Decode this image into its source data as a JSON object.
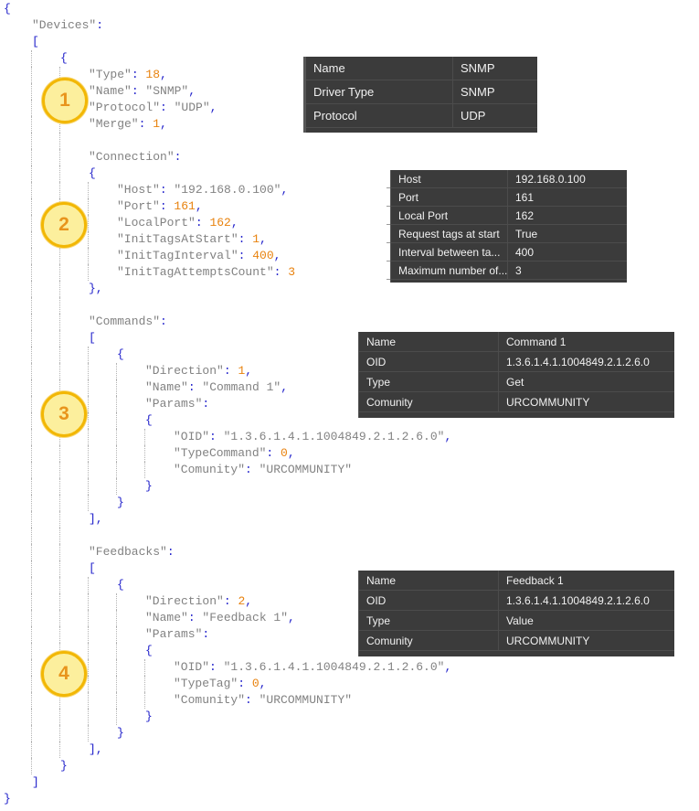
{
  "colors": {
    "punctuation": "#2323cb",
    "string": "#828282",
    "number": "#e8820e",
    "indent_guide": "#b3b3b3",
    "circle_fill": "#fcef9d",
    "circle_border": "#f2b705",
    "circle_number": "#e8941c",
    "table_background": "#3b3b3b",
    "table_text": "#f1f1f1",
    "table_separator": "#4c4c4c"
  },
  "annotations": [
    {
      "label": "1"
    },
    {
      "label": "2"
    },
    {
      "label": "3"
    },
    {
      "label": "4"
    }
  ],
  "code": {
    "lines": [
      {
        "d": 0,
        "t": [
          [
            "p",
            "{"
          ]
        ]
      },
      {
        "d": 1,
        "t": [
          [
            "s",
            "\"Devices\""
          ],
          [
            "p",
            ":"
          ]
        ]
      },
      {
        "d": 1,
        "t": [
          [
            "p",
            "["
          ]
        ]
      },
      {
        "d": 2,
        "t": [
          [
            "p",
            "{"
          ]
        ]
      },
      {
        "d": 3,
        "t": [
          [
            "s",
            "\"Type\""
          ],
          [
            "p",
            ": "
          ],
          [
            "n",
            "18"
          ],
          [
            "p",
            ","
          ]
        ]
      },
      {
        "d": 3,
        "t": [
          [
            "s",
            "\"Name\""
          ],
          [
            "p",
            ": "
          ],
          [
            "s",
            "\"SNMP\""
          ],
          [
            "p",
            ","
          ]
        ]
      },
      {
        "d": 3,
        "t": [
          [
            "s",
            "\"Protocol\""
          ],
          [
            "p",
            ": "
          ],
          [
            "s",
            "\"UDP\""
          ],
          [
            "p",
            ","
          ]
        ]
      },
      {
        "d": 3,
        "t": [
          [
            "s",
            "\"Merge\""
          ],
          [
            "p",
            ": "
          ],
          [
            "n",
            "1"
          ],
          [
            "p",
            ","
          ]
        ]
      },
      {
        "d": 3,
        "t": []
      },
      {
        "d": 3,
        "t": [
          [
            "s",
            "\"Connection\""
          ],
          [
            "p",
            ":"
          ]
        ]
      },
      {
        "d": 3,
        "t": [
          [
            "p",
            "{"
          ]
        ]
      },
      {
        "d": 4,
        "t": [
          [
            "s",
            "\"Host\""
          ],
          [
            "p",
            ": "
          ],
          [
            "s",
            "\"192.168.0.100\""
          ],
          [
            "p",
            ","
          ]
        ]
      },
      {
        "d": 4,
        "t": [
          [
            "s",
            "\"Port\""
          ],
          [
            "p",
            ": "
          ],
          [
            "n",
            "161"
          ],
          [
            "p",
            ","
          ]
        ]
      },
      {
        "d": 4,
        "t": [
          [
            "s",
            "\"LocalPort\""
          ],
          [
            "p",
            ": "
          ],
          [
            "n",
            "162"
          ],
          [
            "p",
            ","
          ]
        ]
      },
      {
        "d": 4,
        "t": [
          [
            "s",
            "\"InitTagsAtStart\""
          ],
          [
            "p",
            ": "
          ],
          [
            "n",
            "1"
          ],
          [
            "p",
            ","
          ]
        ]
      },
      {
        "d": 4,
        "t": [
          [
            "s",
            "\"InitTagInterval\""
          ],
          [
            "p",
            ": "
          ],
          [
            "n",
            "400"
          ],
          [
            "p",
            ","
          ]
        ]
      },
      {
        "d": 4,
        "t": [
          [
            "s",
            "\"InitTagAttemptsCount\""
          ],
          [
            "p",
            ": "
          ],
          [
            "n",
            "3"
          ]
        ]
      },
      {
        "d": 3,
        "t": [
          [
            "p",
            "},"
          ]
        ]
      },
      {
        "d": 3,
        "t": []
      },
      {
        "d": 3,
        "t": [
          [
            "s",
            "\"Commands\""
          ],
          [
            "p",
            ":"
          ]
        ]
      },
      {
        "d": 3,
        "t": [
          [
            "p",
            "["
          ]
        ]
      },
      {
        "d": 4,
        "t": [
          [
            "p",
            "{"
          ]
        ]
      },
      {
        "d": 5,
        "t": [
          [
            "s",
            "\"Direction\""
          ],
          [
            "p",
            ": "
          ],
          [
            "n",
            "1"
          ],
          [
            "p",
            ","
          ]
        ]
      },
      {
        "d": 5,
        "t": [
          [
            "s",
            "\"Name\""
          ],
          [
            "p",
            ": "
          ],
          [
            "s",
            "\"Command 1\""
          ],
          [
            "p",
            ","
          ]
        ]
      },
      {
        "d": 5,
        "t": [
          [
            "s",
            "\"Params\""
          ],
          [
            "p",
            ":"
          ]
        ]
      },
      {
        "d": 5,
        "t": [
          [
            "p",
            "{"
          ]
        ]
      },
      {
        "d": 6,
        "t": [
          [
            "s",
            "\"OID\""
          ],
          [
            "p",
            ": "
          ],
          [
            "s",
            "\"1.3.6.1.4.1.1004849.2.1.2.6.0\""
          ],
          [
            "p",
            ","
          ]
        ]
      },
      {
        "d": 6,
        "t": [
          [
            "s",
            "\"TypeCommand\""
          ],
          [
            "p",
            ": "
          ],
          [
            "n",
            "0"
          ],
          [
            "p",
            ","
          ]
        ]
      },
      {
        "d": 6,
        "t": [
          [
            "s",
            "\"Comunity\""
          ],
          [
            "p",
            ": "
          ],
          [
            "s",
            "\"URCOMMUNITY\""
          ]
        ]
      },
      {
        "d": 5,
        "t": [
          [
            "p",
            "}"
          ]
        ]
      },
      {
        "d": 4,
        "t": [
          [
            "p",
            "}"
          ]
        ]
      },
      {
        "d": 3,
        "t": [
          [
            "p",
            "],"
          ]
        ]
      },
      {
        "d": 3,
        "t": []
      },
      {
        "d": 3,
        "t": [
          [
            "s",
            "\"Feedbacks\""
          ],
          [
            "p",
            ":"
          ]
        ]
      },
      {
        "d": 3,
        "t": [
          [
            "p",
            "["
          ]
        ]
      },
      {
        "d": 4,
        "t": [
          [
            "p",
            "{"
          ]
        ]
      },
      {
        "d": 5,
        "t": [
          [
            "s",
            "\"Direction\""
          ],
          [
            "p",
            ": "
          ],
          [
            "n",
            "2"
          ],
          [
            "p",
            ","
          ]
        ]
      },
      {
        "d": 5,
        "t": [
          [
            "s",
            "\"Name\""
          ],
          [
            "p",
            ": "
          ],
          [
            "s",
            "\"Feedback 1\""
          ],
          [
            "p",
            ","
          ]
        ]
      },
      {
        "d": 5,
        "t": [
          [
            "s",
            "\"Params\""
          ],
          [
            "p",
            ":"
          ]
        ]
      },
      {
        "d": 5,
        "t": [
          [
            "p",
            "{"
          ]
        ]
      },
      {
        "d": 6,
        "t": [
          [
            "s",
            "\"OID\""
          ],
          [
            "p",
            ": "
          ],
          [
            "s",
            "\"1.3.6.1.4.1.1004849.2.1.2.6.0\""
          ],
          [
            "p",
            ","
          ]
        ]
      },
      {
        "d": 6,
        "t": [
          [
            "s",
            "\"TypeTag\""
          ],
          [
            "p",
            ": "
          ],
          [
            "n",
            "0"
          ],
          [
            "p",
            ","
          ]
        ]
      },
      {
        "d": 6,
        "t": [
          [
            "s",
            "\"Comunity\""
          ],
          [
            "p",
            ": "
          ],
          [
            "s",
            "\"URCOMMUNITY\""
          ]
        ]
      },
      {
        "d": 5,
        "t": [
          [
            "p",
            "}"
          ]
        ]
      },
      {
        "d": 4,
        "t": [
          [
            "p",
            "}"
          ]
        ]
      },
      {
        "d": 3,
        "t": [
          [
            "p",
            "],"
          ]
        ]
      },
      {
        "d": 2,
        "t": [
          [
            "p",
            "}"
          ]
        ]
      },
      {
        "d": 1,
        "t": [
          [
            "p",
            "]"
          ]
        ]
      },
      {
        "d": 0,
        "t": [
          [
            "p",
            "}"
          ]
        ]
      }
    ]
  },
  "tables": [
    {
      "name": "device-properties",
      "rows": [
        {
          "name": "Name",
          "value": "SNMP"
        },
        {
          "name": "Driver Type",
          "value": "SNMP"
        },
        {
          "name": "Protocol",
          "value": "UDP"
        }
      ]
    },
    {
      "name": "connection-properties",
      "rows": [
        {
          "name": "Host",
          "value": "192.168.0.100"
        },
        {
          "name": "Port",
          "value": "161"
        },
        {
          "name": "Local Port",
          "value": "162"
        },
        {
          "name": "Request tags at start",
          "value": "True"
        },
        {
          "name": "Interval between ta...",
          "value": "400"
        },
        {
          "name": "Maximum number of...",
          "value": "3"
        }
      ]
    },
    {
      "name": "command-properties",
      "rows": [
        {
          "name": "Name",
          "value": "Command 1"
        },
        {
          "name": "OID",
          "value": "1.3.6.1.4.1.1004849.2.1.2.6.0"
        },
        {
          "name": "Type",
          "value": "Get"
        },
        {
          "name": "Comunity",
          "value": "URCOMMUNITY"
        }
      ]
    },
    {
      "name": "feedback-properties",
      "rows": [
        {
          "name": "Name",
          "value": "Feedback 1"
        },
        {
          "name": "OID",
          "value": "1.3.6.1.4.1.1004849.2.1.2.6.0"
        },
        {
          "name": "Type",
          "value": "Value"
        },
        {
          "name": "Comunity",
          "value": "URCOMMUNITY"
        }
      ]
    }
  ]
}
